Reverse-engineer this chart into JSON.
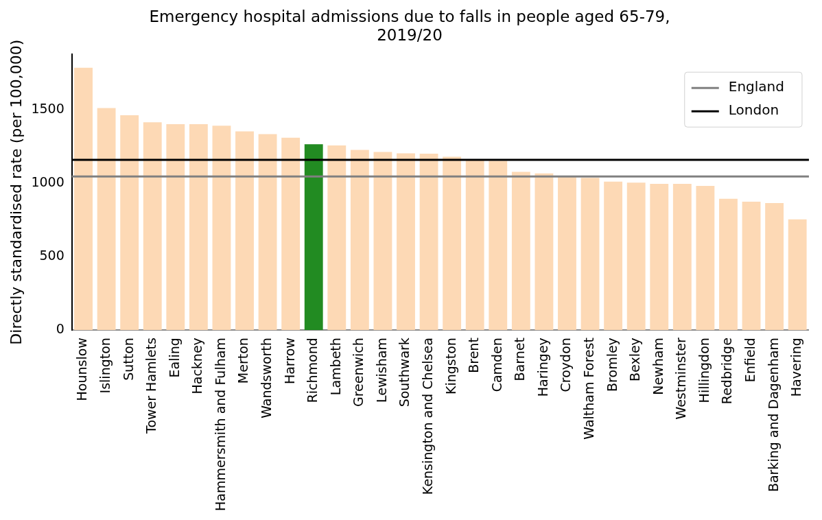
{
  "chart_data": {
    "type": "bar",
    "title": "Emergency hospital admissions due to falls in people aged 65-79,\n2019/20",
    "ylabel": "Directly standardised rate (per 100,000)",
    "categories": [
      "Hounslow",
      "Islington",
      "Sutton",
      "Tower Hamlets",
      "Ealing",
      "Hackney",
      "Hammersmith and Fulham",
      "Merton",
      "Wandsworth",
      "Harrow",
      "Richmond",
      "Lambeth",
      "Greenwich",
      "Lewisham",
      "Southwark",
      "Kensington and Chelsea",
      "Kingston",
      "Brent",
      "Camden",
      "Barnet",
      "Haringey",
      "Croydon",
      "Waltham Forest",
      "Bromley",
      "Bexley",
      "Newham",
      "Westminster",
      "Hillingdon",
      "Redbridge",
      "Enfield",
      "Barking and Dagenham",
      "Havering"
    ],
    "values": [
      1784,
      1510,
      1461,
      1413,
      1400,
      1400,
      1390,
      1351,
      1332,
      1308,
      1264,
      1256,
      1225,
      1211,
      1202,
      1200,
      1178,
      1155,
      1150,
      1076,
      1066,
      1040,
      1035,
      1009,
      1003,
      994,
      994,
      980,
      893,
      873,
      864,
      753
    ],
    "colors": [
      "#fdd9b5",
      "#fdd9b5",
      "#fdd9b5",
      "#fdd9b5",
      "#fdd9b5",
      "#fdd9b5",
      "#fdd9b5",
      "#fdd9b5",
      "#fdd9b5",
      "#fdd9b5",
      "#228b22",
      "#fdd9b5",
      "#fdd9b5",
      "#fdd9b5",
      "#fdd9b5",
      "#fdd9b5",
      "#fdd9b5",
      "#fdd9b5",
      "#fdd9b5",
      "#fdd9b5",
      "#fdd9b5",
      "#fdd9b5",
      "#fdd9b5",
      "#fdd9b5",
      "#fdd9b5",
      "#fdd9b5",
      "#fdd9b5",
      "#fdd9b5",
      "#fdd9b5",
      "#fdd9b5",
      "#fdd9b5",
      "#fdd9b5"
    ],
    "ylim": [
      0,
      1875
    ],
    "yticks": [
      0,
      500,
      1000,
      1500
    ],
    "grid": false,
    "legend": "top right",
    "ref_lines": [
      {
        "axis": "y",
        "value": 1044,
        "label": "England",
        "color": "#808080"
      },
      {
        "axis": "y",
        "value": 1157,
        "label": "London",
        "color": "#000000"
      }
    ]
  }
}
